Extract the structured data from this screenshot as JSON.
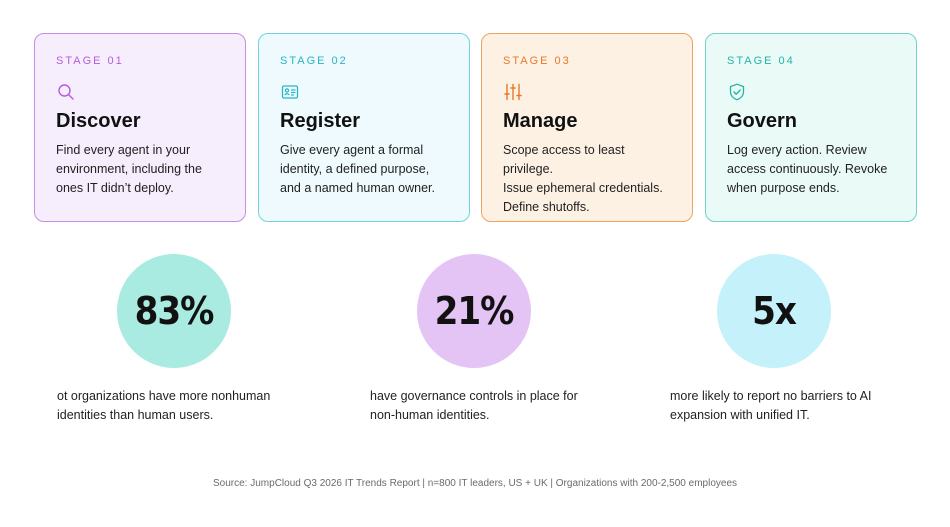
{
  "stages": [
    {
      "label": "STAGE 01",
      "title": "Discover",
      "icon": "search-icon",
      "color": "#b45dd9",
      "lines": [
        "Find every agent in your",
        "environment, including the",
        "ones IT didn’t deploy."
      ]
    },
    {
      "label": "STAGE 02",
      "title": "Register",
      "icon": "id-card-icon",
      "color": "#27b6c6",
      "lines": [
        "Give every agent a formal",
        "identity, a defined purpose,",
        "and a named human owner."
      ]
    },
    {
      "label": "STAGE 03",
      "title": "Manage",
      "icon": "sliders-icon",
      "color": "#e8792a",
      "lines": [
        "Scope access to least privilege.",
        "Issue ephemeral credentials.",
        "Define shutoffs."
      ]
    },
    {
      "label": "STAGE 04",
      "title": "Govern",
      "icon": "shield-check-icon",
      "color": "#25b3a8",
      "lines": [
        "Log every action. Review",
        "access continuously. Revoke",
        "when purpose ends."
      ]
    }
  ],
  "stats": [
    {
      "value": "83%",
      "lines": [
        "ot organizations have more nonhuman",
        "identities than human users."
      ]
    },
    {
      "value": "21%",
      "lines": [
        "have governance controls in place for",
        "non-human identities."
      ]
    },
    {
      "value": "5x",
      "lines": [
        "more likely to report no barriers to AI",
        "expansion with unified IT."
      ]
    }
  ],
  "source": "Source: JumpCloud Q3 2026 IT Trends Report | n=800 IT leaders, US + UK | Organizations with 200-2,500 employees"
}
